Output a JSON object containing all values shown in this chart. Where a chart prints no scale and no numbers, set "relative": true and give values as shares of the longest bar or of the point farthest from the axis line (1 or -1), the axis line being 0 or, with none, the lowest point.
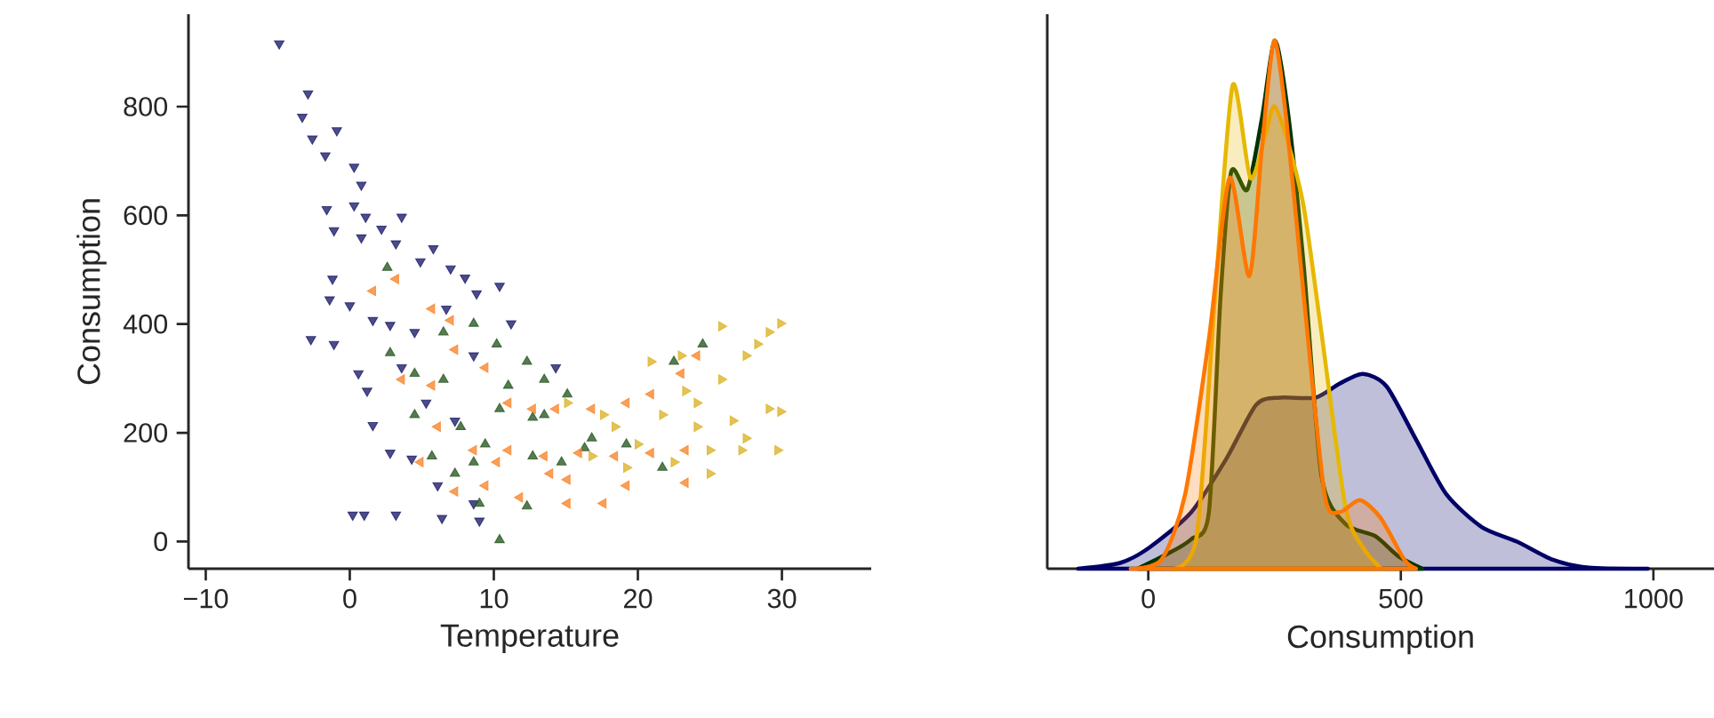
{
  "chart_data": [
    {
      "type": "scatter",
      "xlabel": "Temperature",
      "ylabel": "Consumption",
      "xlim": [
        -11.2,
        36.2
      ],
      "ylim": [
        -50,
        970
      ],
      "xticks": [
        {
          "value": -10,
          "label": "−10"
        },
        0,
        10,
        20,
        30
      ],
      "yticks": [
        0,
        200,
        400,
        600,
        800
      ],
      "marker": "triangle",
      "series": [
        {
          "color": "#1f1f6b",
          "x": [
            -4.9,
            -2.9,
            -3.3,
            -2.6,
            -0.9,
            -1.7,
            0.3,
            0.8,
            -1.6,
            0.3,
            -1.1,
            1.1,
            3.6,
            0.8,
            2.2,
            3.2,
            5.8,
            4.9,
            7.0,
            8.0,
            -1.2,
            -1.4,
            0.0,
            -2.7,
            -1.1,
            1.6,
            2.8,
            4.5,
            8.8,
            10.4,
            11.2,
            0.6,
            1.2,
            1.6,
            2.8,
            4.3,
            6.1,
            0.2,
            1.0,
            3.2,
            6.4,
            9.0,
            8.6,
            14.3,
            7.3,
            5.3,
            3.6,
            8.6,
            6.7
          ],
          "values": [
            916,
            824,
            781,
            741,
            756,
            710,
            689,
            656,
            611,
            618,
            572,
            597,
            597,
            559,
            575,
            548,
            539,
            515,
            502,
            485,
            483,
            445,
            434,
            372,
            363,
            407,
            398,
            385,
            456,
            470,
            401,
            309,
            277,
            214,
            163,
            152,
            103,
            49,
            49,
            49,
            43,
            38,
            70,
            320,
            222,
            255,
            320,
            342,
            428
          ]
        },
        {
          "color": "#2a5a24",
          "x": [
            2.6,
            2.8,
            4.5,
            6.5,
            8.6,
            10.2,
            12.3,
            13.5,
            15.1,
            12.7,
            10.4,
            7.7,
            9.4,
            5.7,
            8.6,
            12.7,
            14.7,
            16.8,
            19.2,
            21.7,
            22.5,
            24.5,
            12.3,
            10.4,
            9.0,
            7.3,
            13.5,
            11.0,
            6.5,
            4.5,
            16.3
          ],
          "values": [
            504,
            347,
            309,
            385,
            401,
            363,
            331,
            298,
            271,
            228,
            244,
            211,
            179,
            157,
            146,
            157,
            146,
            190,
            179,
            136,
            331,
            363,
            65,
            3,
            70,
            125,
            233,
            287,
            298,
            233,
            172
          ]
        },
        {
          "color": "#f7872e",
          "x": [
            1.6,
            3.2,
            5.7,
            7.0,
            3.6,
            5.7,
            6.1,
            4.9,
            7.3,
            9.4,
            11.8,
            13.9,
            15.1,
            17.6,
            19.2,
            23.3,
            11.0,
            12.7,
            14.3,
            16.8,
            19.2,
            20.9,
            23.0,
            24.1,
            11.0,
            13.5,
            15.9,
            18.4,
            20.9,
            23.3,
            8.6,
            10.2,
            15.1,
            9.4,
            7.3
          ],
          "values": [
            461,
            483,
            428,
            407,
            298,
            287,
            211,
            146,
            92,
            103,
            81,
            125,
            70,
            70,
            103,
            108,
            255,
            244,
            244,
            244,
            255,
            271,
            309,
            342,
            168,
            157,
            163,
            157,
            163,
            168,
            168,
            146,
            114,
            320,
            353
          ]
        },
        {
          "color": "#dcb42c",
          "x": [
            15.1,
            17.6,
            20.9,
            23.0,
            25.8,
            29.1,
            29.9,
            27.5,
            25.8,
            24.1,
            26.6,
            29.1,
            29.9,
            27.5,
            25.0,
            25.0,
            22.5,
            20.0,
            18.4,
            21.7,
            23.3,
            28.3,
            29.7,
            27.2,
            16.8,
            19.2,
            24.1
          ],
          "values": [
            255,
            233,
            331,
            342,
            396,
            385,
            401,
            342,
            298,
            255,
            222,
            244,
            239,
            190,
            168,
            125,
            146,
            179,
            211,
            233,
            277,
            363,
            168,
            168,
            157,
            136,
            211
          ]
        }
      ]
    },
    {
      "type": "area",
      "relative": true,
      "xlabel": "Consumption",
      "xlim": [
        -200,
        1120
      ],
      "xticks": [
        0,
        500,
        1000
      ],
      "tick_labels": "x",
      "series": [
        {
          "color": "#000066",
          "x": [
            -139,
            -56,
            2,
            85,
            155,
            214,
            261,
            331,
            378,
            425,
            472,
            531,
            590,
            660,
            731,
            801,
            872,
            989
          ],
          "values": [
            0,
            0.011,
            0.04,
            0.107,
            0.209,
            0.311,
            0.324,
            0.324,
            0.35,
            0.369,
            0.345,
            0.243,
            0.141,
            0.079,
            0.051,
            0.017,
            0.002,
            0
          ]
        },
        {
          "color": "#003300",
          "x": [
            -21,
            38,
            85,
            120,
            143,
            164,
            196,
            225,
            251,
            278,
            308,
            343,
            390,
            449,
            496,
            543
          ],
          "values": [
            0,
            0.028,
            0.056,
            0.107,
            0.514,
            0.751,
            0.718,
            0.853,
            1.0,
            0.853,
            0.571,
            0.175,
            0.085,
            0.062,
            0.023,
            0
          ]
        },
        {
          "color": "#e6b800",
          "x": [
            49,
            96,
            132,
            167,
            202,
            231,
            249,
            273,
            308,
            343,
            390,
            425,
            461
          ],
          "values": [
            0,
            0.062,
            0.514,
            0.915,
            0.74,
            0.819,
            0.876,
            0.819,
            0.684,
            0.446,
            0.119,
            0.04,
            0
          ]
        },
        {
          "color": "#ff7700",
          "x": [
            -35,
            26,
            73,
            120,
            161,
            200,
            225,
            249,
            273,
            308,
            349,
            378,
            419,
            460,
            507,
            530
          ],
          "values": [
            0,
            0.017,
            0.141,
            0.435,
            0.74,
            0.554,
            0.797,
            1.0,
            0.853,
            0.514,
            0.141,
            0.107,
            0.13,
            0.096,
            0.017,
            0
          ]
        }
      ]
    }
  ]
}
